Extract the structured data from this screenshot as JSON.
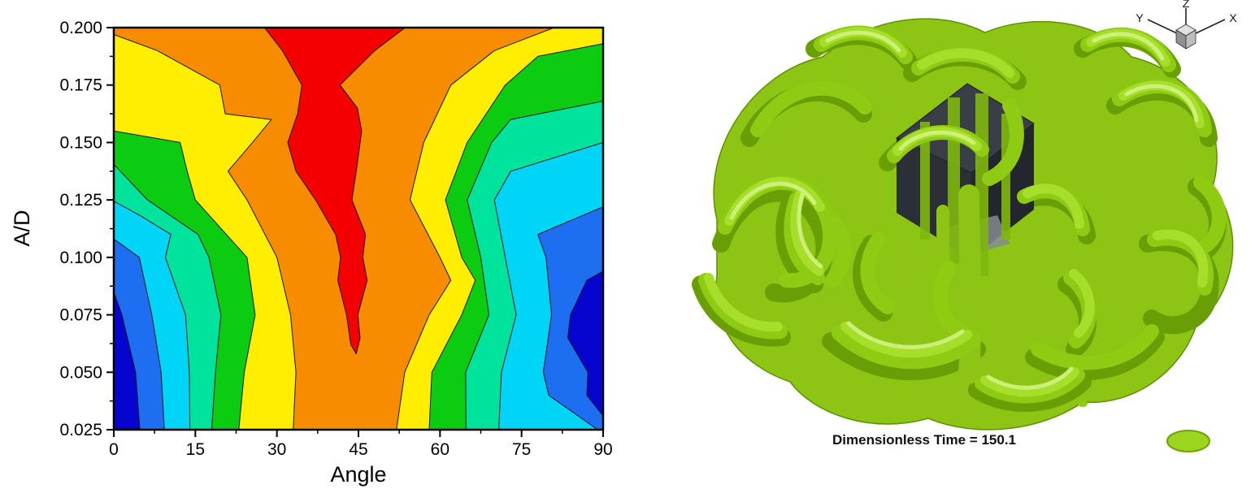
{
  "chart_data": {
    "type": "heatmap",
    "subtype": "filled_contour",
    "xlabel": "Angle",
    "ylabel": "A/D",
    "xlim": [
      0,
      90
    ],
    "ylim": [
      0.025,
      0.2
    ],
    "x_ticks": [
      0,
      15,
      30,
      45,
      60,
      75,
      90
    ],
    "x_tick_labels": [
      "0",
      "15",
      "30",
      "45",
      "60",
      "75",
      "90"
    ],
    "x_minor_ticks": [
      7.5,
      22.5,
      37.5,
      52.5,
      67.5,
      82.5
    ],
    "y_ticks": [
      0.2,
      0.175,
      0.15,
      0.125,
      0.1,
      0.075,
      0.05,
      0.025
    ],
    "y_tick_labels": [
      "0.200",
      "0.175",
      "0.150",
      "0.125",
      "0.100",
      "0.075",
      "0.050",
      "0.025"
    ],
    "y_minor_ticks": [
      0.1875,
      0.1625,
      0.1375,
      0.1125,
      0.0875,
      0.0625,
      0.0375
    ],
    "grid": false,
    "legend": "none",
    "colors": {
      "navy": "#0505cf",
      "blue": "#1e6ef2",
      "cyan": "#00d4f7",
      "spring": "#00e39c",
      "green": "#0ccc11",
      "yellow": "#ffee00",
      "orange": "#f78c00",
      "red": "#f40000"
    },
    "level_order_low_to_high": [
      "navy",
      "blue",
      "cyan",
      "spring",
      "green",
      "yellow",
      "orange",
      "red"
    ],
    "bands": [
      {
        "name": "base-orange",
        "color": "orange",
        "points": [
          [
            0,
            0.025
          ],
          [
            90,
            0.025
          ],
          [
            90,
            0.2
          ],
          [
            0,
            0.2
          ]
        ]
      },
      {
        "name": "yellow-left",
        "color": "yellow",
        "points": [
          [
            33,
            0.025
          ],
          [
            33.5,
            0.05
          ],
          [
            32.5,
            0.075
          ],
          [
            30,
            0.1
          ],
          [
            24.5,
            0.125
          ],
          [
            21,
            0.1375
          ],
          [
            25.5,
            0.15
          ],
          [
            29,
            0.16
          ],
          [
            20.5,
            0.1625
          ],
          [
            19.5,
            0.175
          ],
          [
            8,
            0.19
          ],
          [
            0,
            0.197
          ],
          [
            0,
            0.025
          ]
        ]
      },
      {
        "name": "green-left",
        "color": "green",
        "points": [
          [
            23,
            0.025
          ],
          [
            24,
            0.05
          ],
          [
            26,
            0.075
          ],
          [
            24.5,
            0.1
          ],
          [
            15,
            0.125
          ],
          [
            13.5,
            0.1375
          ],
          [
            12.2,
            0.15
          ],
          [
            0,
            0.155
          ],
          [
            0,
            0.025
          ]
        ]
      },
      {
        "name": "spring-left",
        "color": "spring",
        "points": [
          [
            18,
            0.025
          ],
          [
            18.7,
            0.05
          ],
          [
            19.7,
            0.075
          ],
          [
            17.5,
            0.1
          ],
          [
            15.5,
            0.11
          ],
          [
            6.2,
            0.125
          ],
          [
            0,
            0.1405
          ],
          [
            0,
            0.025
          ]
        ]
      },
      {
        "name": "cyan-left",
        "color": "cyan",
        "points": [
          [
            14,
            0.025
          ],
          [
            13.9,
            0.05
          ],
          [
            13.2,
            0.075
          ],
          [
            9.5,
            0.1
          ],
          [
            10.5,
            0.11
          ],
          [
            5,
            0.118
          ],
          [
            0,
            0.1245
          ],
          [
            0,
            0.025
          ]
        ]
      },
      {
        "name": "blue-left",
        "color": "blue",
        "points": [
          [
            9.3,
            0.025
          ],
          [
            8.7,
            0.05
          ],
          [
            7,
            0.075
          ],
          [
            4.7,
            0.1
          ],
          [
            0,
            0.108
          ],
          [
            0,
            0.025
          ]
        ]
      },
      {
        "name": "navy-left",
        "color": "navy",
        "points": [
          [
            4.8,
            0.025
          ],
          [
            4,
            0.05
          ],
          [
            1.5,
            0.075
          ],
          [
            0,
            0.085
          ],
          [
            0,
            0.025
          ]
        ]
      },
      {
        "name": "yellow-right",
        "color": "yellow",
        "points": [
          [
            52,
            0.025
          ],
          [
            53.5,
            0.05
          ],
          [
            58,
            0.075
          ],
          [
            62,
            0.09
          ],
          [
            60,
            0.1
          ],
          [
            54.5,
            0.125
          ],
          [
            57,
            0.15
          ],
          [
            62,
            0.175
          ],
          [
            70,
            0.19
          ],
          [
            81,
            0.2
          ],
          [
            90,
            0.2
          ],
          [
            90,
            0.025
          ]
        ]
      },
      {
        "name": "green-right",
        "color": "green",
        "points": [
          [
            58,
            0.025
          ],
          [
            58.5,
            0.05
          ],
          [
            64,
            0.075
          ],
          [
            66.5,
            0.09
          ],
          [
            64,
            0.1
          ],
          [
            61,
            0.125
          ],
          [
            65,
            0.15
          ],
          [
            72,
            0.175
          ],
          [
            78,
            0.1875
          ],
          [
            90,
            0.193
          ],
          [
            90,
            0.025
          ]
        ]
      },
      {
        "name": "spring-right",
        "color": "spring",
        "points": [
          [
            64.8,
            0.025
          ],
          [
            64.7,
            0.05
          ],
          [
            69,
            0.075
          ],
          [
            67.5,
            0.1
          ],
          [
            65,
            0.125
          ],
          [
            69.5,
            0.15
          ],
          [
            73,
            0.16
          ],
          [
            90,
            0.168
          ],
          [
            90,
            0.025
          ]
        ]
      },
      {
        "name": "cyan-right",
        "color": "cyan",
        "points": [
          [
            70.8,
            0.025
          ],
          [
            71.3,
            0.05
          ],
          [
            74,
            0.075
          ],
          [
            72,
            0.1
          ],
          [
            70,
            0.125
          ],
          [
            73,
            0.1375
          ],
          [
            90,
            0.15
          ],
          [
            90,
            0.025
          ]
        ]
      },
      {
        "name": "blue-right",
        "color": "blue",
        "points": [
          [
            89,
            0.025
          ],
          [
            80,
            0.04
          ],
          [
            79,
            0.05
          ],
          [
            80.5,
            0.075
          ],
          [
            79.5,
            0.1
          ],
          [
            78,
            0.11
          ],
          [
            90,
            0.122
          ],
          [
            90,
            0.025
          ]
        ]
      },
      {
        "name": "navy-right",
        "color": "navy",
        "points": [
          [
            90,
            0.031
          ],
          [
            87,
            0.04
          ],
          [
            87.2,
            0.05
          ],
          [
            83.5,
            0.065
          ],
          [
            84,
            0.075
          ],
          [
            87,
            0.09
          ],
          [
            90,
            0.094
          ]
        ]
      },
      {
        "name": "red-ridge",
        "color": "red",
        "points": [
          [
            27.7,
            0.2
          ],
          [
            53.6,
            0.2
          ],
          [
            48,
            0.19
          ],
          [
            41.6,
            0.175
          ],
          [
            44.8,
            0.165
          ],
          [
            45.6,
            0.155
          ],
          [
            44.6,
            0.1375
          ],
          [
            43.8,
            0.125
          ],
          [
            46.3,
            0.11
          ],
          [
            45.8,
            0.1
          ],
          [
            46.6,
            0.09
          ],
          [
            44.9,
            0.075
          ],
          [
            45.3,
            0.065
          ],
          [
            44.6,
            0.058
          ],
          [
            43.6,
            0.062
          ],
          [
            42.8,
            0.075
          ],
          [
            41.2,
            0.09
          ],
          [
            41.7,
            0.1
          ],
          [
            40.8,
            0.11
          ],
          [
            37.1,
            0.125
          ],
          [
            33.5,
            0.1375
          ],
          [
            32,
            0.15
          ],
          [
            33.8,
            0.1625
          ],
          [
            34.6,
            0.175
          ],
          [
            31,
            0.19
          ]
        ]
      }
    ]
  },
  "right_panel": {
    "caption": "Dimensionless Time = 150.1",
    "triad": {
      "left": "Y",
      "up": "Z",
      "right": "X"
    },
    "isosurface_color": "#8ecb12",
    "body_color": "#2b2f36"
  }
}
